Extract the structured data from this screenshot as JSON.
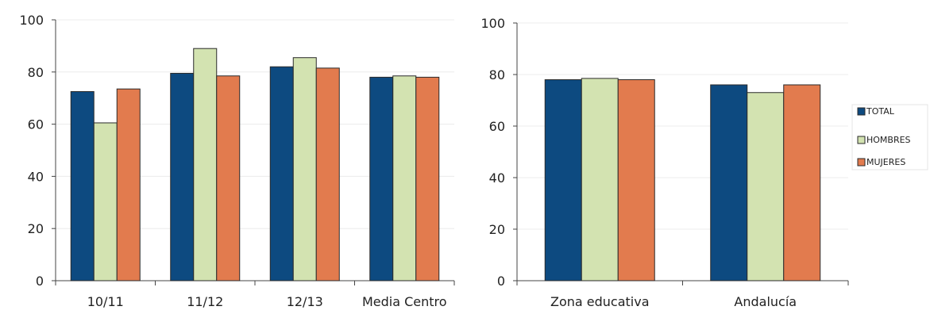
{
  "colors": {
    "TOTAL": "#0d4a80",
    "HOMBRES": "#d3e3b1",
    "MUJERES": "#e27b4e",
    "bar_stroke": "#2a2a2a",
    "gridline": "#ececec",
    "axis": "#444444"
  },
  "chart_data": [
    {
      "type": "bar",
      "categories": [
        "10/11",
        "11/12",
        "12/13",
        "Media Centro"
      ],
      "series": [
        {
          "name": "TOTAL",
          "values": [
            72.5,
            79.5,
            82,
            78
          ]
        },
        {
          "name": "HOMBRES",
          "values": [
            60.5,
            89,
            85.5,
            78.5
          ]
        },
        {
          "name": "MUJERES",
          "values": [
            73.5,
            78.5,
            81.5,
            78
          ]
        }
      ],
      "ylim": [
        0,
        100
      ],
      "yticks": [
        "0",
        "20",
        "40",
        "60",
        "80",
        "100"
      ],
      "grid": true,
      "title": "",
      "xlabel": "",
      "ylabel": ""
    },
    {
      "type": "bar",
      "categories": [
        "Zona educativa",
        "Andalucía"
      ],
      "series": [
        {
          "name": "TOTAL",
          "values": [
            78,
            76
          ]
        },
        {
          "name": "HOMBRES",
          "values": [
            78.5,
            73
          ]
        },
        {
          "name": "MUJERES",
          "values": [
            78,
            76
          ]
        }
      ],
      "ylim": [
        0,
        100
      ],
      "yticks": [
        "0",
        "20",
        "40",
        "60",
        "80",
        "100"
      ],
      "grid": true,
      "title": "",
      "xlabel": "",
      "ylabel": ""
    }
  ],
  "legend": {
    "placement": "right",
    "items": [
      {
        "label": "TOTAL",
        "color": "#0d4a80"
      },
      {
        "label": "HOMBRES",
        "color": "#d3e3b1"
      },
      {
        "label": "MUJERES",
        "color": "#e27b4e"
      }
    ]
  }
}
